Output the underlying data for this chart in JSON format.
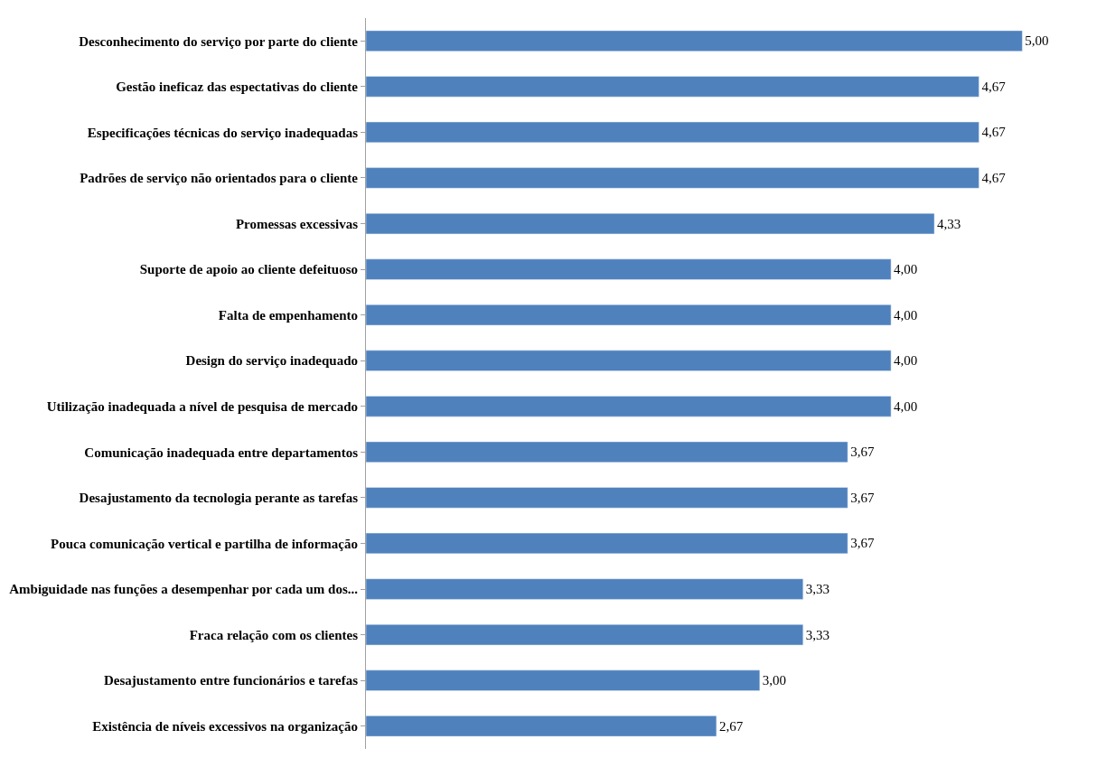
{
  "chart_data": {
    "type": "bar",
    "orientation": "horizontal",
    "categories": [
      "Desconhecimento do serviço por parte do cliente",
      "Gestão ineficaz das espectativas do cliente",
      "Especificações técnicas do serviço inadequadas",
      "Padrões de serviço não orientados para o cliente",
      "Promessas excessivas",
      "Suporte de apoio ao cliente defeituoso",
      "Falta de empenhamento",
      "Design do serviço inadequado",
      "Utilização inadequada a nível de pesquisa de mercado",
      "Comunicação inadequada entre departamentos",
      "Desajustamento da tecnologia perante as tarefas",
      "Pouca comunicação vertical e partilha de informação",
      "Ambiguidade nas funções a desempenhar por cada um dos...",
      "Fraca relação com os clientes",
      "Desajustamento entre funcionários e tarefas",
      "Existência de níveis excessivos na organização"
    ],
    "values": [
      5.0,
      4.67,
      4.67,
      4.67,
      4.33,
      4.0,
      4.0,
      4.0,
      4.0,
      3.67,
      3.67,
      3.67,
      3.33,
      3.33,
      3.0,
      2.67
    ],
    "value_labels": [
      "5,00",
      "4,67",
      "4,67",
      "4,67",
      "4,33",
      "4,00",
      "4,00",
      "4,00",
      "4,00",
      "3,67",
      "3,67",
      "3,67",
      "3,33",
      "3,33",
      "3,00",
      "2,67"
    ],
    "color": "#4f81bd"
  }
}
